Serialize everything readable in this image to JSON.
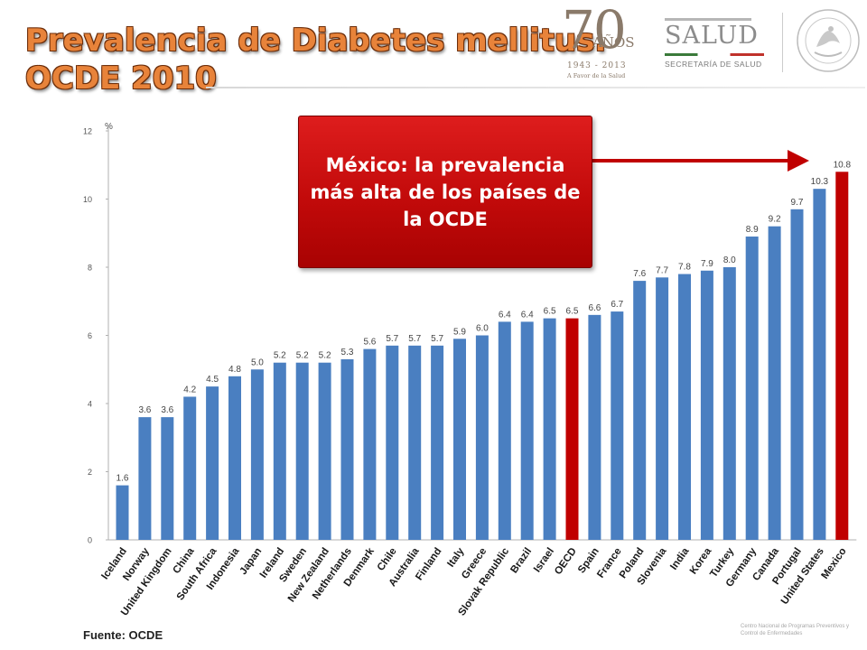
{
  "title": {
    "line1": "Prevalencia de Diabetes mellitus.",
    "line2": "OCDE 2010"
  },
  "logos": {
    "anniversary": {
      "number": "70",
      "word": "AÑOS",
      "years": "1943 - 2013",
      "tagline": "A Favor de la Salud"
    },
    "ministry": {
      "name": "SALUD",
      "subtitle": "SECRETARÍA DE SALUD"
    },
    "footer": "Centro Nacional de Programas Preventivos y Control de Enfermedades"
  },
  "callout": {
    "text": "México: la prevalencia más alta de los países de la OCDE"
  },
  "source": "Fuente: OCDE",
  "colors": {
    "bar": "#4a7fc1",
    "highlight": "#c00000",
    "title": "#e8833a"
  },
  "chart_data": {
    "type": "bar",
    "categories": [
      "Iceland",
      "Norway",
      "United Kingdom",
      "China",
      "South Africa",
      "Indonesia",
      "Japan",
      "Ireland",
      "Sweden",
      "New Zealand",
      "Netherlands",
      "Denmark",
      "Chile",
      "Australia",
      "Finland",
      "Italy",
      "Greece",
      "Slovak Republic",
      "Brazil",
      "Israel",
      "OECD",
      "Spain",
      "France",
      "Poland",
      "Slovenia",
      "India",
      "Korea",
      "Turkey",
      "Germany",
      "Canada",
      "Portugal",
      "United States",
      "Mexico"
    ],
    "values": [
      1.6,
      3.6,
      3.6,
      4.2,
      4.5,
      4.8,
      5.0,
      5.2,
      5.2,
      5.2,
      5.3,
      5.6,
      5.7,
      5.7,
      5.7,
      5.9,
      6.0,
      6.4,
      6.4,
      6.5,
      6.5,
      6.6,
      6.7,
      7.6,
      7.7,
      7.8,
      7.9,
      8.0,
      8.9,
      9.2,
      9.7,
      10.3,
      10.8
    ],
    "labels": [
      "1.6",
      "3.6",
      "3.6",
      "4.2",
      "4.5",
      "4.8",
      "5.0",
      "5.2",
      "5.2",
      "5.2",
      "5.3",
      "5.6",
      "5.7",
      "5.7",
      "5.7",
      "5.9",
      "6.0",
      "6.4",
      "6.4",
      "6.5",
      "6.5",
      "6.6",
      "6.7",
      "7.6",
      "7.7",
      "7.8",
      "7.9",
      "8.0",
      "8.9",
      "9.2",
      "9.7",
      "10.3",
      "10.8"
    ],
    "highlighted": [
      "OECD",
      "Mexico"
    ],
    "ylabel": "%",
    "ylim": [
      0,
      12
    ],
    "yticks": [
      0,
      2,
      4,
      6,
      8,
      10,
      12
    ],
    "grid": false,
    "legend": "none"
  }
}
